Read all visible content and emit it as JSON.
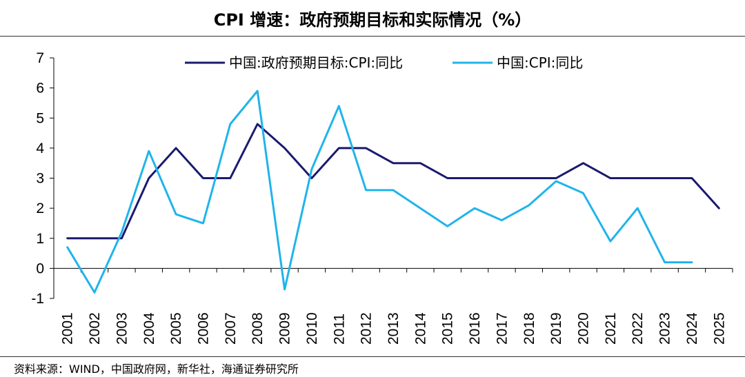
{
  "title": "CPI 增速：政府预期目标和实际情况（%）",
  "source": "资料来源：WIND，中国政府网，新华社，海通证券研究所",
  "chart_data": {
    "type": "line",
    "title": "CPI 增速：政府预期目标和实际情况（%）",
    "categories": [
      "2001",
      "2002",
      "2003",
      "2004",
      "2005",
      "2006",
      "2007",
      "2008",
      "2009",
      "2010",
      "2011",
      "2012",
      "2013",
      "2014",
      "2015",
      "2016",
      "2017",
      "2018",
      "2019",
      "2020",
      "2021",
      "2022",
      "2023",
      "2024",
      "2025"
    ],
    "ylim": [
      -1,
      7
    ],
    "yticks": [
      -1,
      0,
      1,
      2,
      3,
      4,
      5,
      6,
      7
    ],
    "legend_position": "top-center",
    "series": [
      {
        "name": "中国:政府预期目标:CPI:同比",
        "color": "#1a1a6e",
        "values": [
          1,
          1,
          1,
          3,
          4,
          3,
          3,
          4.8,
          4,
          3,
          4,
          4,
          3.5,
          3.5,
          3,
          3,
          3,
          3,
          3,
          3.5,
          3,
          3,
          3,
          3,
          2
        ]
      },
      {
        "name": "中国:CPI:同比",
        "color": "#1fb4ea",
        "values": [
          0.7,
          -0.8,
          1.2,
          3.9,
          1.8,
          1.5,
          4.8,
          5.9,
          -0.7,
          3.3,
          5.4,
          2.6,
          2.6,
          2.0,
          1.4,
          2.0,
          1.6,
          2.1,
          2.9,
          2.5,
          0.9,
          2.0,
          0.2,
          0.2,
          null
        ]
      }
    ]
  }
}
